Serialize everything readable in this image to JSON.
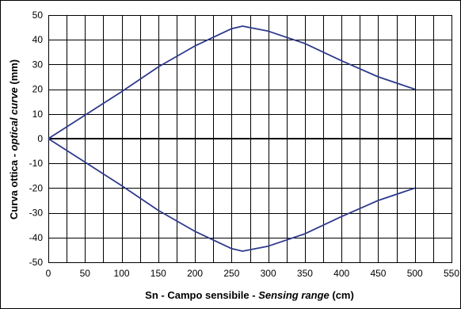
{
  "chart_data": {
    "type": "line",
    "xlabel": "Sn - Campo sensibile - Sensing range (cm)",
    "xlabel_parts": [
      {
        "text": "Sn - Campo sensibile - ",
        "italic": false
      },
      {
        "text": "Sensing range",
        "italic": true
      },
      {
        "text": " (cm)",
        "italic": false
      }
    ],
    "ylabel": "Curva ottica - optical curve (mm)",
    "ylabel_parts": [
      {
        "text": "Curva ottica - ",
        "italic": false
      },
      {
        "text": "optical curve",
        "italic": true
      },
      {
        "text": " (mm)",
        "italic": false
      }
    ],
    "xlim": [
      0,
      550
    ],
    "ylim": [
      -50,
      50
    ],
    "x_ticks": [
      0,
      50,
      100,
      150,
      200,
      250,
      300,
      350,
      400,
      450,
      500,
      550
    ],
    "y_ticks": [
      50,
      40,
      30,
      20,
      10,
      0,
      -10,
      -20,
      -30,
      -40,
      -50
    ],
    "x_minor_step": 25,
    "grid": true,
    "line_color": "#2e3a8c",
    "series": [
      {
        "values_xy": [
          [
            0,
            0
          ],
          [
            50,
            9.5
          ],
          [
            100,
            19
          ],
          [
            150,
            29
          ],
          [
            200,
            37.5
          ],
          [
            250,
            44.5
          ],
          [
            265,
            45.5
          ],
          [
            300,
            43.5
          ],
          [
            350,
            38.5
          ],
          [
            400,
            31.5
          ],
          [
            450,
            25
          ],
          [
            500,
            20
          ]
        ]
      },
      {
        "values_xy": [
          [
            0,
            0
          ],
          [
            50,
            -9.5
          ],
          [
            100,
            -19
          ],
          [
            150,
            -29
          ],
          [
            200,
            -37.5
          ],
          [
            250,
            -44.5
          ],
          [
            265,
            -45.5
          ],
          [
            300,
            -43.5
          ],
          [
            350,
            -38.5
          ],
          [
            400,
            -31.5
          ],
          [
            450,
            -25
          ],
          [
            500,
            -20
          ]
        ]
      }
    ]
  }
}
